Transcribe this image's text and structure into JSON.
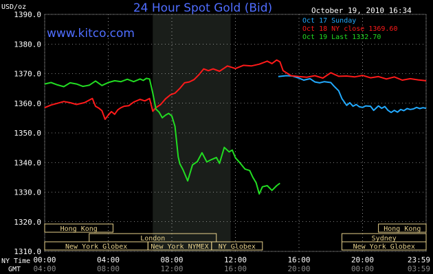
{
  "header": {
    "title": "24 Hour Spot Gold (Bid)",
    "site": "www.kitco.com",
    "unit": "USD/oz",
    "timestamp": "October 19, 2010 16:34"
  },
  "legend": [
    {
      "label": "Oct 17 Sunday",
      "color": "#22aaff"
    },
    {
      "label": "Oct 18 NY close 1369.60",
      "color": "#ff1a1a"
    },
    {
      "label": "Oct 19 Last 1332.70",
      "color": "#22dd22"
    }
  ],
  "colors": {
    "background": "#000000",
    "shade": "#1a1e1a",
    "grid": "#ffffff",
    "text": "#ffffff",
    "title": "#4f6dff",
    "market": "#e8d28c"
  },
  "axes": {
    "ny_label": "NY Time",
    "gmt_label": "GMT",
    "ny_ticks": [
      "00:00",
      "04:00",
      "08:00",
      "12:00",
      "16:00",
      "20:00",
      "23:59"
    ],
    "gmt_ticks": [
      "04:00",
      "08:00",
      "12:00",
      "16:00",
      "20:00",
      "00:00",
      "03:59"
    ]
  },
  "markets": [
    {
      "label": "Hong Kong",
      "row": 0,
      "start": 0,
      "end": 4.3
    },
    {
      "label": "London",
      "row": 1,
      "start": 2.8,
      "end": 10.8
    },
    {
      "label": "New York Globex",
      "row": 2,
      "start": 0,
      "end": 6.5
    },
    {
      "label": "New York NYMEX",
      "row": 2,
      "start": 6.5,
      "end": 10.5
    },
    {
      "label": "NY Globex",
      "row": 2,
      "start": 10.5,
      "end": 13.7
    },
    {
      "label": "Hong Kong",
      "row": 0,
      "start": 21,
      "end": 24
    },
    {
      "label": "Sydney",
      "row": 1,
      "start": 18.7,
      "end": 24
    },
    {
      "label": "New York Globex",
      "row": 2,
      "start": 18.7,
      "end": 24
    }
  ],
  "chart_data": {
    "type": "line",
    "title": "24 Hour Spot Gold (Bid)",
    "ylabel": "USD/oz",
    "xlabel": "NY Time",
    "ylim": [
      1310,
      1390
    ],
    "xlim": [
      0,
      24
    ],
    "yticks": [
      1310,
      1320,
      1330,
      1340,
      1350,
      1360,
      1370,
      1380,
      1390
    ],
    "yticklabels": [
      "1310.0",
      "1320.0",
      "1330.0",
      "1340.0",
      "1350.0",
      "1360.0",
      "1370.0",
      "1380.0",
      "1390.0"
    ],
    "shaded_x": [
      6.8,
      11.7
    ],
    "grid": true,
    "series": [
      {
        "name": "Oct 17 Sunday",
        "color": "#22aaff",
        "x": [
          14.7,
          15.2,
          15.6,
          16.0,
          16.3,
          16.7,
          17.0,
          17.3,
          17.6,
          18.0,
          18.2,
          18.5,
          18.7,
          19.0,
          19.2,
          19.4,
          19.6,
          19.8,
          20.0,
          20.2,
          20.5,
          20.7,
          21.0,
          21.2,
          21.4,
          21.6,
          21.8,
          22.0,
          22.2,
          22.4,
          22.6,
          22.8,
          23.0,
          23.2,
          23.4,
          23.6,
          23.8,
          24.0
        ],
        "y": [
          1369.0,
          1369.3,
          1369.2,
          1368.5,
          1367.8,
          1368.3,
          1367.2,
          1366.9,
          1367.3,
          1367.0,
          1365.8,
          1364.2,
          1361.6,
          1359.3,
          1360.2,
          1359.0,
          1359.6,
          1358.8,
          1358.6,
          1359.1,
          1359.0,
          1357.6,
          1359.1,
          1358.3,
          1358.9,
          1357.6,
          1356.9,
          1357.6,
          1357.0,
          1357.9,
          1357.5,
          1358.2,
          1357.9,
          1358.1,
          1358.6,
          1358.2,
          1358.5,
          1358.3
        ]
      },
      {
        "name": "Oct 18 NY close 1369.60",
        "color": "#ff1a1a",
        "x": [
          0,
          0.4,
          0.8,
          1.2,
          1.6,
          2.0,
          2.5,
          3.0,
          3.2,
          3.4,
          3.6,
          3.8,
          4.0,
          4.2,
          4.4,
          4.6,
          4.8,
          5.0,
          5.3,
          5.6,
          6.0,
          6.3,
          6.6,
          6.8,
          7.0,
          7.3,
          7.6,
          7.9,
          8.2,
          8.5,
          8.8,
          9.1,
          9.4,
          9.7,
          10.0,
          10.3,
          10.6,
          11.0,
          11.5,
          12.0,
          12.5,
          13.0,
          13.5,
          14.0,
          14.3,
          14.6,
          14.8,
          15.0,
          15.5,
          16.0,
          16.5,
          17.0,
          17.5,
          18.0,
          18.5,
          19.0,
          19.5,
          20.0,
          20.5,
          21.0,
          21.5,
          22.0,
          22.5,
          23.0,
          23.5,
          24.0
        ],
        "y": [
          1358.5,
          1359.4,
          1360.0,
          1360.6,
          1360.2,
          1359.6,
          1360.2,
          1361.6,
          1359.0,
          1358.4,
          1357.5,
          1354.6,
          1356.0,
          1357.2,
          1356.3,
          1357.8,
          1358.5,
          1359.0,
          1359.2,
          1360.4,
          1361.3,
          1360.8,
          1361.6,
          1357.3,
          1358.5,
          1359.6,
          1361.5,
          1362.8,
          1363.4,
          1365.0,
          1366.9,
          1367.2,
          1368.0,
          1369.6,
          1371.6,
          1371.0,
          1371.6,
          1370.8,
          1372.6,
          1371.7,
          1372.8,
          1372.6,
          1373.2,
          1374.2,
          1373.4,
          1374.6,
          1374.0,
          1371.0,
          1369.3,
          1369.0,
          1368.8,
          1369.3,
          1368.5,
          1370.3,
          1369.1,
          1369.2,
          1368.9,
          1369.4,
          1368.6,
          1369.0,
          1368.2,
          1368.9,
          1367.8,
          1368.3,
          1367.9,
          1367.6
        ]
      },
      {
        "name": "Oct 19 Last 1332.70",
        "color": "#22dd22",
        "x": [
          0,
          0.4,
          0.8,
          1.2,
          1.6,
          2.0,
          2.4,
          2.8,
          3.2,
          3.6,
          4.0,
          4.4,
          4.8,
          5.2,
          5.6,
          6.0,
          6.2,
          6.4,
          6.6,
          6.8,
          7.0,
          7.2,
          7.4,
          7.6,
          7.8,
          8.0,
          8.2,
          8.4,
          8.5,
          8.7,
          9.0,
          9.3,
          9.6,
          9.9,
          10.2,
          10.5,
          10.8,
          11.0,
          11.3,
          11.6,
          11.8,
          12.0,
          12.3,
          12.6,
          12.9,
          13.1,
          13.3,
          13.5,
          13.7,
          14.0,
          14.3,
          14.6,
          14.8
        ],
        "y": [
          1366.5,
          1367.0,
          1366.2,
          1365.6,
          1366.9,
          1366.5,
          1365.7,
          1366.1,
          1367.5,
          1366.0,
          1367.0,
          1367.6,
          1367.3,
          1368.1,
          1367.3,
          1368.2,
          1367.7,
          1368.4,
          1368.2,
          1363.4,
          1358.0,
          1357.0,
          1355.1,
          1356.0,
          1356.6,
          1355.7,
          1352.2,
          1341.9,
          1339.6,
          1337.6,
          1333.8,
          1339.2,
          1340.3,
          1343.3,
          1340.2,
          1341.0,
          1341.7,
          1339.7,
          1345.1,
          1343.6,
          1344.2,
          1341.6,
          1339.8,
          1337.8,
          1337.3,
          1335.0,
          1333.2,
          1329.4,
          1331.8,
          1332.2,
          1330.6,
          1332.2,
          1333.0
        ]
      }
    ]
  }
}
